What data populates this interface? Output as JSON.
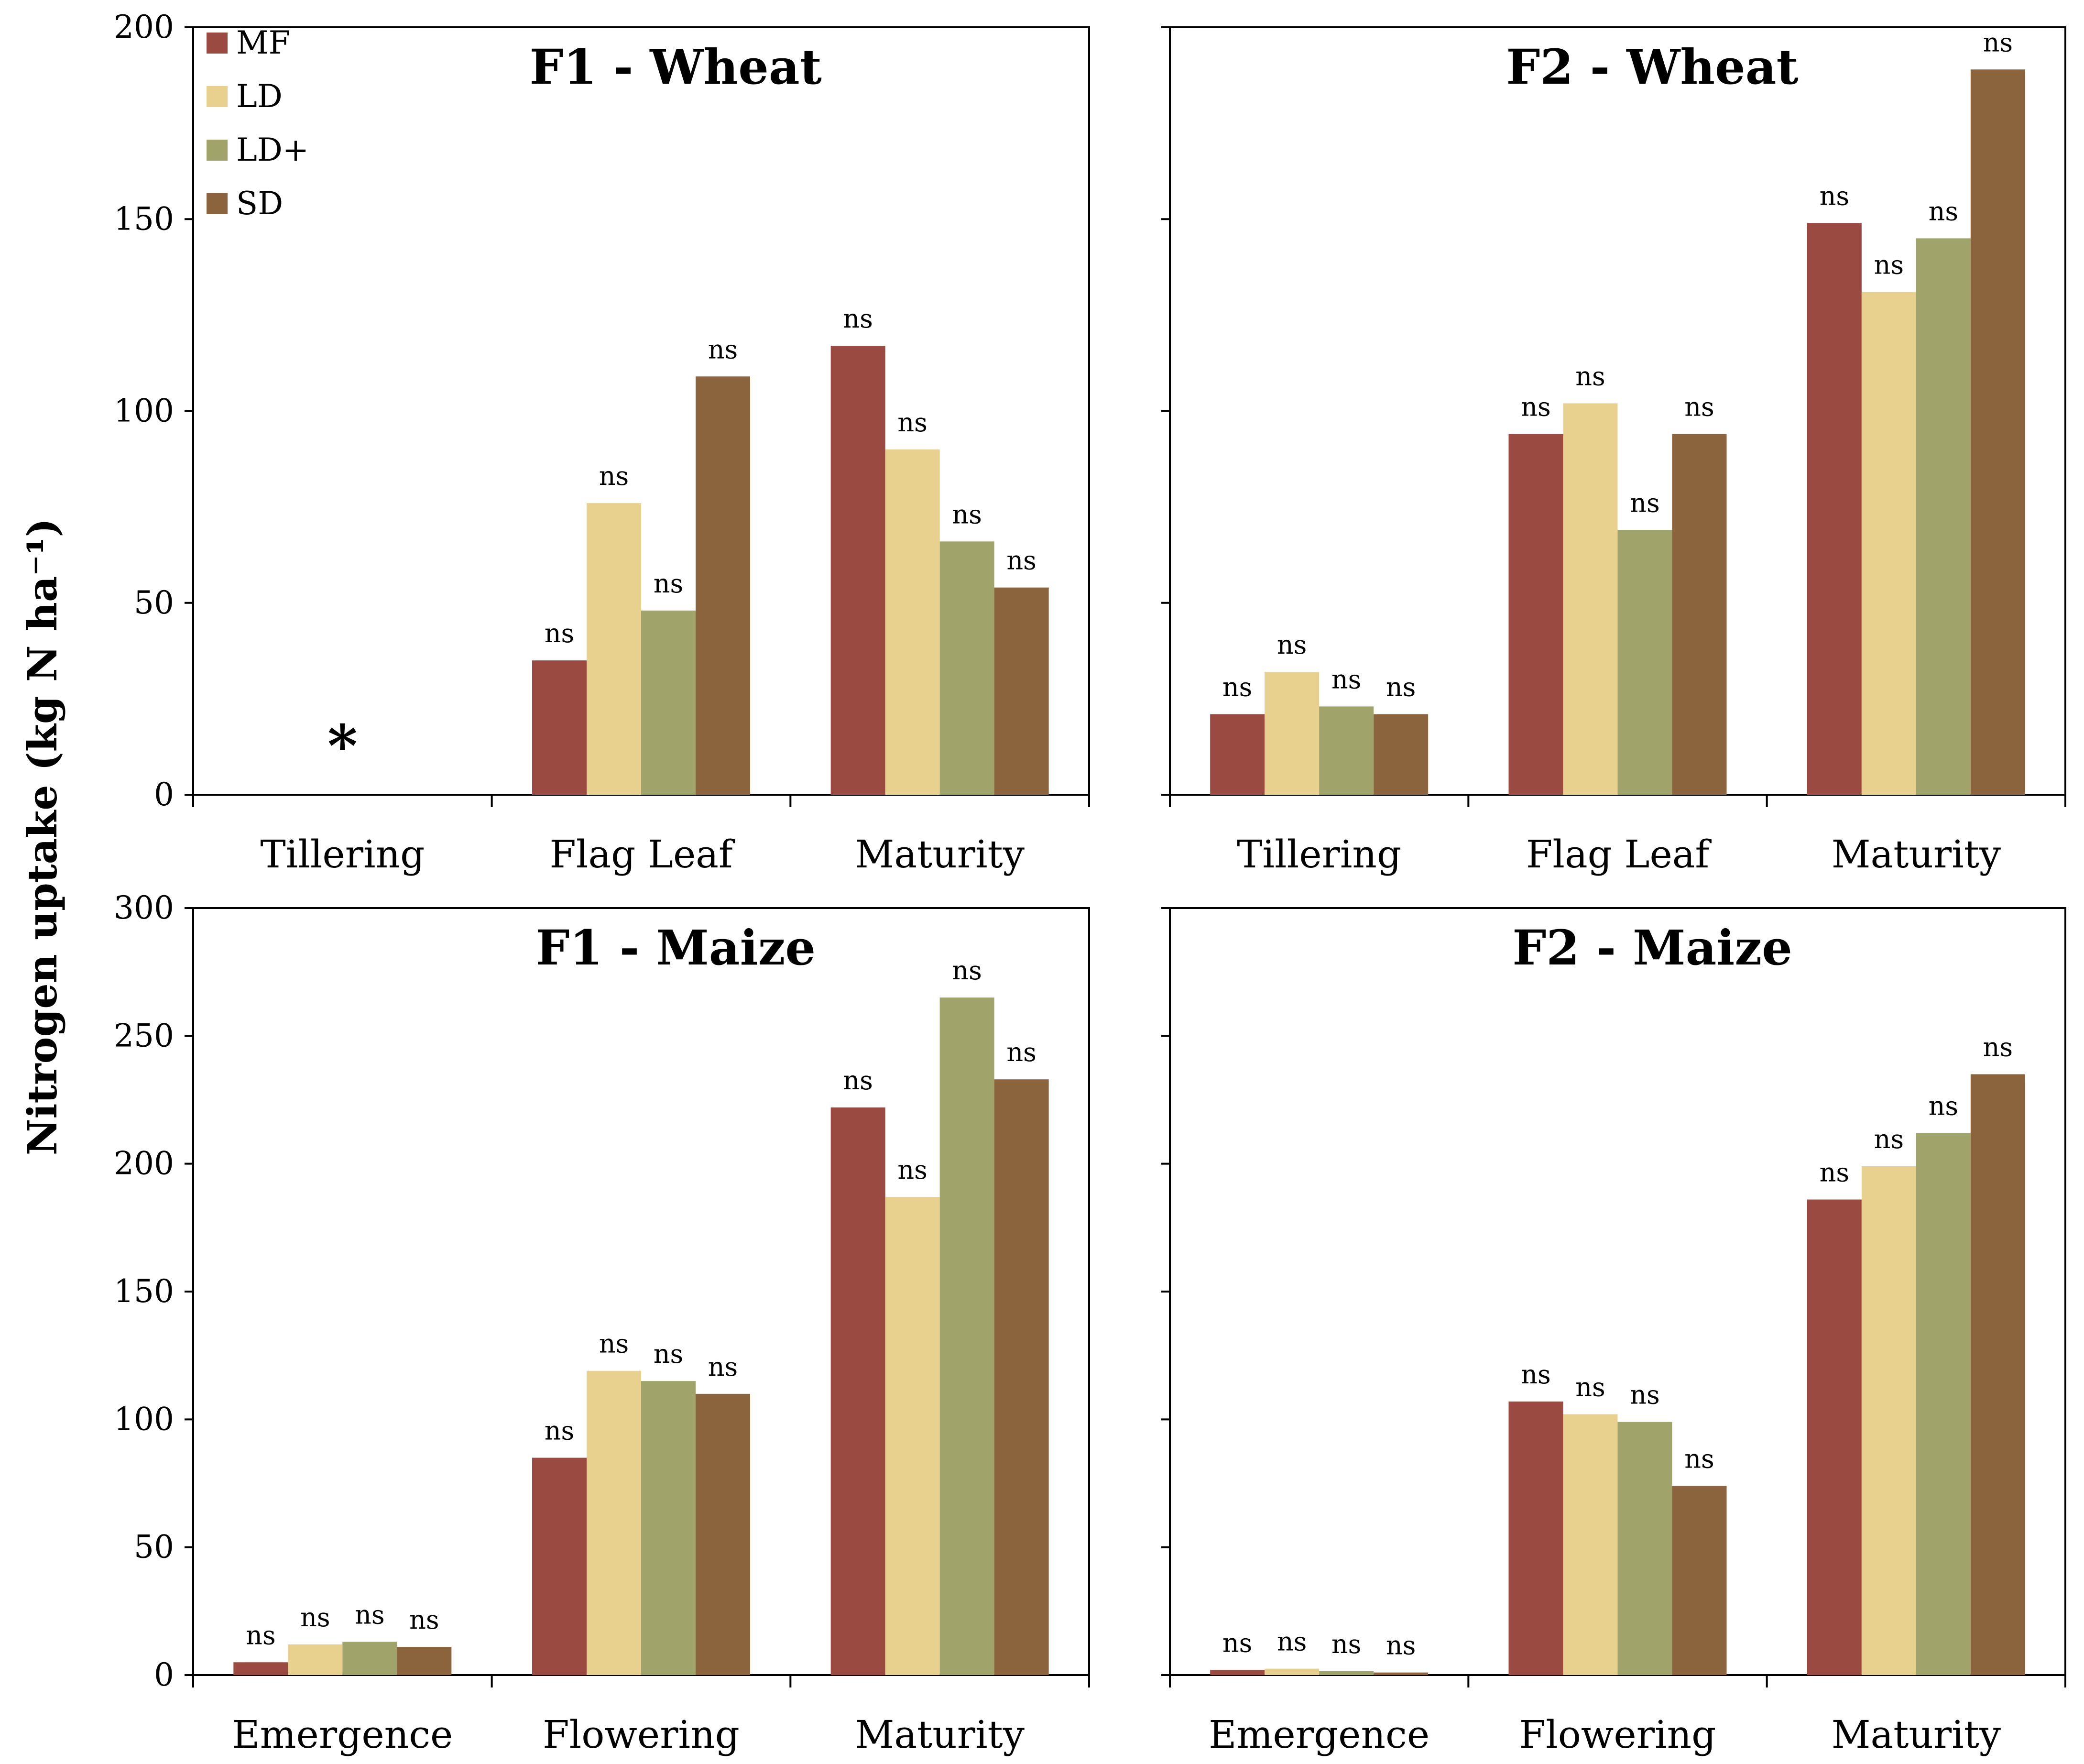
{
  "figure": {
    "ylabel": "Nitrogen uptake (kg N ha⁻¹)",
    "legend": [
      {
        "label": "MF",
        "color": "#9b4a41"
      },
      {
        "label": "LD",
        "color": "#e8d08f"
      },
      {
        "label": "LD+",
        "color": "#a0a46a"
      },
      {
        "label": "SD",
        "color": "#8b643d"
      }
    ]
  },
  "chart_data": [
    {
      "type": "bar",
      "title": "F1 - Wheat",
      "categories": [
        "Tillering",
        "Flag Leaf",
        "Maturity"
      ],
      "ylim": [
        0,
        200
      ],
      "yticks": [
        0,
        50,
        100,
        150,
        200
      ],
      "show_y_tick_labels": true,
      "series": [
        {
          "name": "MF",
          "values": [
            null,
            35,
            117
          ]
        },
        {
          "name": "LD",
          "values": [
            null,
            76,
            90
          ]
        },
        {
          "name": "LD+",
          "values": [
            null,
            48,
            66
          ]
        },
        {
          "name": "SD",
          "values": [
            null,
            109,
            54
          ]
        }
      ],
      "significance": [
        [
          null,
          null,
          null,
          null
        ],
        [
          "ns",
          "ns",
          "ns",
          "ns"
        ],
        [
          "ns",
          "ns",
          "ns",
          "ns"
        ]
      ],
      "annotations": [
        {
          "text": "*",
          "category": "Tillering"
        }
      ]
    },
    {
      "type": "bar",
      "title": "F2 - Wheat",
      "categories": [
        "Tillering",
        "Flag Leaf",
        "Maturity"
      ],
      "ylim": [
        0,
        200
      ],
      "yticks": [
        0,
        50,
        100,
        150,
        200
      ],
      "show_y_tick_labels": false,
      "series": [
        {
          "name": "MF",
          "values": [
            21,
            94,
            149
          ]
        },
        {
          "name": "LD",
          "values": [
            32,
            102,
            131
          ]
        },
        {
          "name": "LD+",
          "values": [
            23,
            69,
            145
          ]
        },
        {
          "name": "SD",
          "values": [
            21,
            94,
            189
          ]
        }
      ],
      "significance": [
        [
          "ns",
          "ns",
          "ns",
          "ns"
        ],
        [
          "ns",
          "ns",
          "ns",
          "ns"
        ],
        [
          "ns",
          "ns",
          "ns",
          "ns"
        ]
      ],
      "annotations": []
    },
    {
      "type": "bar",
      "title": "F1 - Maize",
      "categories": [
        "Emergence",
        "Flowering",
        "Maturity"
      ],
      "ylim": [
        0,
        300
      ],
      "yticks": [
        0,
        50,
        100,
        150,
        200,
        250,
        300
      ],
      "show_y_tick_labels": true,
      "series": [
        {
          "name": "MF",
          "values": [
            5,
            85,
            222
          ]
        },
        {
          "name": "LD",
          "values": [
            12,
            119,
            187
          ]
        },
        {
          "name": "LD+",
          "values": [
            13,
            115,
            265
          ]
        },
        {
          "name": "SD",
          "values": [
            11,
            110,
            233
          ]
        }
      ],
      "significance": [
        [
          "ns",
          "ns",
          "ns",
          "ns"
        ],
        [
          "ns",
          "ns",
          "ns",
          "ns"
        ],
        [
          "ns",
          "ns",
          "ns",
          "ns"
        ]
      ],
      "annotations": []
    },
    {
      "type": "bar",
      "title": "F2 - Maize",
      "categories": [
        "Emergence",
        "Flowering",
        "Maturity"
      ],
      "ylim": [
        0,
        300
      ],
      "yticks": [
        0,
        50,
        100,
        150,
        200,
        250,
        300
      ],
      "show_y_tick_labels": false,
      "series": [
        {
          "name": "MF",
          "values": [
            2,
            107,
            186
          ]
        },
        {
          "name": "LD",
          "values": [
            2.5,
            102,
            199
          ]
        },
        {
          "name": "LD+",
          "values": [
            1.5,
            99,
            212
          ]
        },
        {
          "name": "SD",
          "values": [
            1,
            74,
            235
          ]
        }
      ],
      "significance": [
        [
          "ns",
          "ns",
          "ns",
          "ns"
        ],
        [
          "ns",
          "ns",
          "ns",
          "ns"
        ],
        [
          "ns",
          "ns",
          "ns",
          "ns"
        ]
      ],
      "annotations": []
    }
  ]
}
